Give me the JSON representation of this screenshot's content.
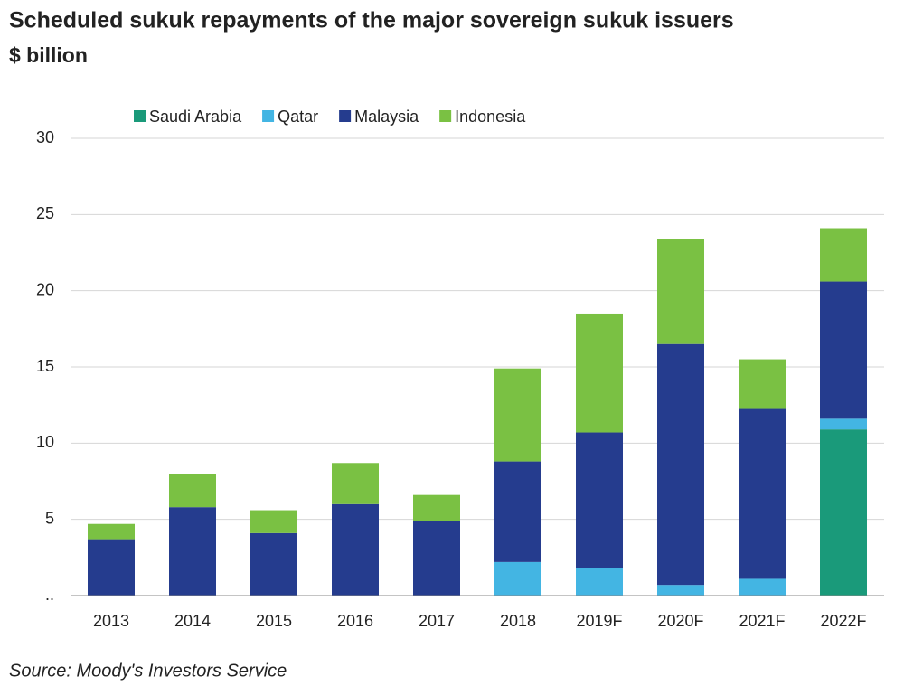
{
  "chart_data": {
    "type": "stacked_bar",
    "title": "Scheduled sukuk repayments of the major sovereign sukuk issuers",
    "subtitle": "$ billion",
    "source": "Source: Moody's Investors Service",
    "categories": [
      "2013",
      "2014",
      "2015",
      "2016",
      "2017",
      "2018",
      "2019F",
      "2020F",
      "2021F",
      "2022F"
    ],
    "series": [
      {
        "name": "Saudi Arabia",
        "color": "#1a9a7a",
        "values": [
          0,
          0,
          0,
          0,
          0,
          0,
          0,
          0,
          0,
          10.9
        ]
      },
      {
        "name": "Qatar",
        "color": "#43b5e3",
        "values": [
          0,
          0,
          0,
          0,
          0,
          2.2,
          1.8,
          0.7,
          1.1,
          0.7
        ]
      },
      {
        "name": "Malaysia",
        "color": "#253c8e",
        "values": [
          3.7,
          5.8,
          4.1,
          6.0,
          4.9,
          6.6,
          8.9,
          15.8,
          11.2,
          9.0
        ]
      },
      {
        "name": "Indonesia",
        "color": "#7ac143",
        "values": [
          1.0,
          2.2,
          1.5,
          2.7,
          1.7,
          6.1,
          7.8,
          6.9,
          3.2,
          3.5
        ]
      }
    ],
    "ylim": [
      0,
      30
    ],
    "yticks": [
      {
        "value": 0,
        "label": ".."
      },
      5,
      10,
      15,
      20,
      25,
      30
    ],
    "grid": true,
    "legend": "top"
  }
}
